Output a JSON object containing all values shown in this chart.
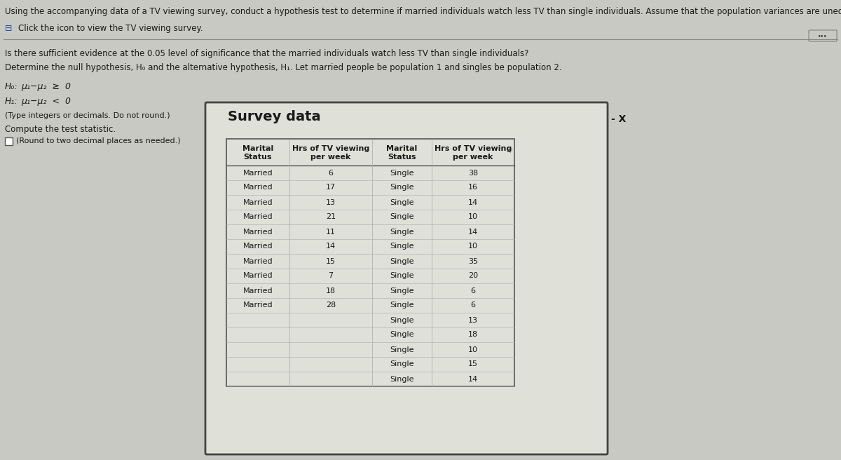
{
  "title_text": "Using the accompanying data of a TV viewing survey, conduct a hypothesis test to determine if married individuals watch less TV than single individuals. Assume that the population variances are unequal.",
  "click_icon": "⊟",
  "click_text": "Click the icon to view the TV viewing survey.",
  "question1": "Is there sufficient evidence at the 0.05 level of significance that the married individuals watch less TV than single individuals?",
  "question2": "Determine the null hypothesis, H₀ and the alternative hypothesis, H₁. Let married people be population 1 and singles be population 2.",
  "h0_label": "H₀:",
  "h0_math": "μ₁−μ₂  ≥  0",
  "h1_label": "H₁:",
  "h1_math": "μ₁−μ₂  <  0",
  "type_note": "(Type integers or decimals. Do not round.)",
  "compute_text": "Compute the test statistic.",
  "round_note": "(Round to two decimal places as needed.)",
  "popup_title": "Survey data",
  "minus_x": "- X",
  "col1_h1": "Marital",
  "col1_h2": "Status",
  "col2_h1": "Hrs of TV viewing",
  "col2_h2": "per week",
  "col3_h1": "Marital",
  "col3_h2": "Status",
  "col4_h1": "Hrs of TV viewing",
  "col4_h2": "per week",
  "married_values": [
    6,
    17,
    13,
    21,
    11,
    14,
    15,
    7,
    18,
    28
  ],
  "single_values": [
    38,
    16,
    14,
    10,
    14,
    10,
    35,
    20,
    6,
    6,
    13,
    18,
    10,
    15,
    14
  ],
  "bg_color": "#c8c9c2",
  "popup_bg": "#dfe0d8",
  "text_color": "#1a1a1a",
  "line_color": "#888880",
  "table_border_color": "#555550",
  "header_bg": "#dfe0d8",
  "row_bg": "#dfe0d8"
}
